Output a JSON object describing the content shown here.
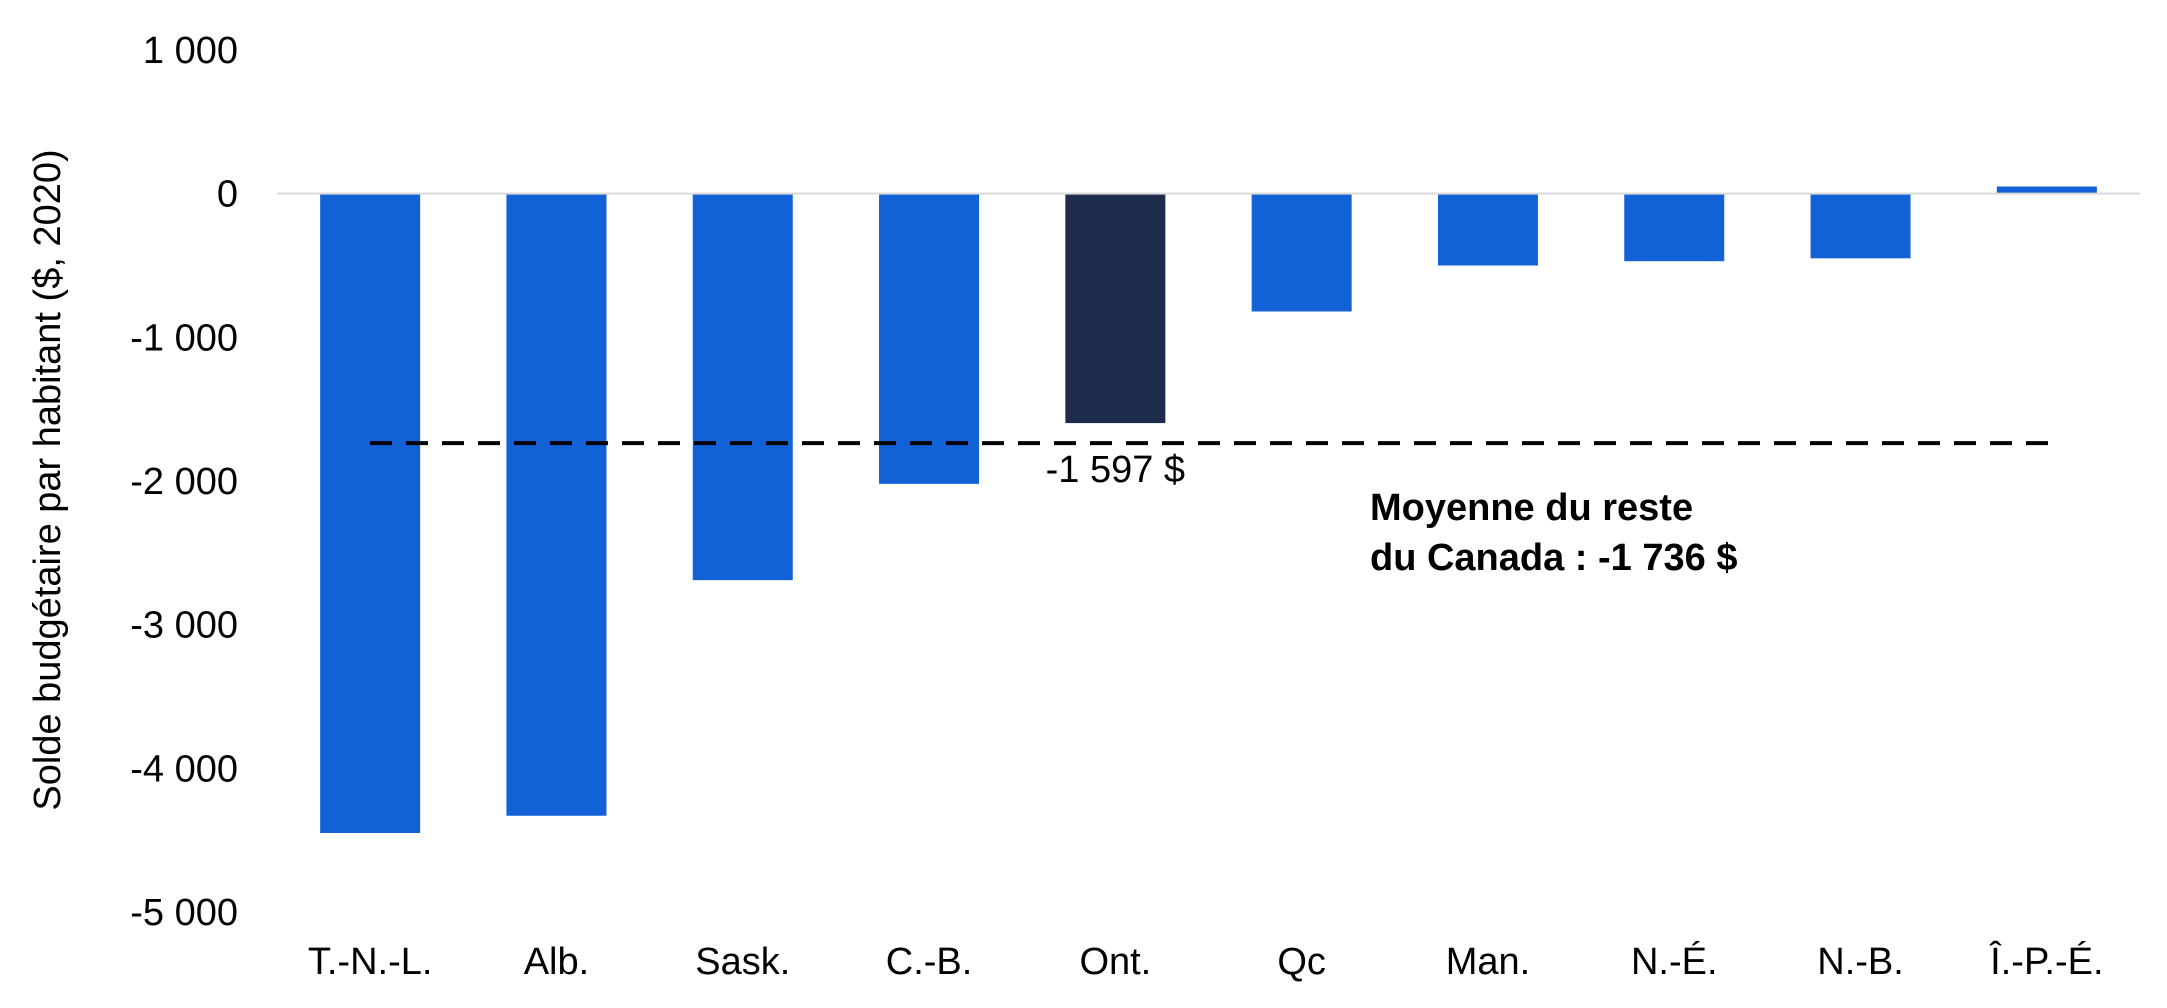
{
  "chart_data": {
    "type": "bar",
    "title": "",
    "xlabel": "",
    "ylabel": "Solde budgétaire par habitant ($, 2020)",
    "categories": [
      "T.-N.-L.",
      "Alb.",
      "Sask.",
      "C.-B.",
      "Ont.",
      "Qc",
      "Man.",
      "N.-É.",
      "N.-B.",
      "Î.-P.-É."
    ],
    "values": [
      -4450,
      -4330,
      -2690,
      -2020,
      -1597,
      -820,
      -500,
      -470,
      -450,
      50
    ],
    "highlight_category": "Ont.",
    "ylim": [
      -5000,
      1000
    ],
    "yticks": [
      1000,
      0,
      -1000,
      -2000,
      -3000,
      -4000,
      -5000
    ],
    "ytick_labels": [
      "1 000",
      "0",
      "-1 000",
      "-2 000",
      "-3 000",
      "-4 000",
      "-5 000"
    ],
    "grid": false,
    "reference_line": {
      "value": -1736,
      "style": "dashed",
      "label_lines": [
        "Moyenne du reste",
        "du Canada : -1 736 $"
      ]
    },
    "data_labels": [
      {
        "category": "Ont.",
        "text": "-1 597 $"
      }
    ],
    "colors": {
      "bar": "#1261D6",
      "highlight": "#1C2C4A",
      "zero_line": "#D9D9D9",
      "reference_line": "#000000"
    }
  }
}
